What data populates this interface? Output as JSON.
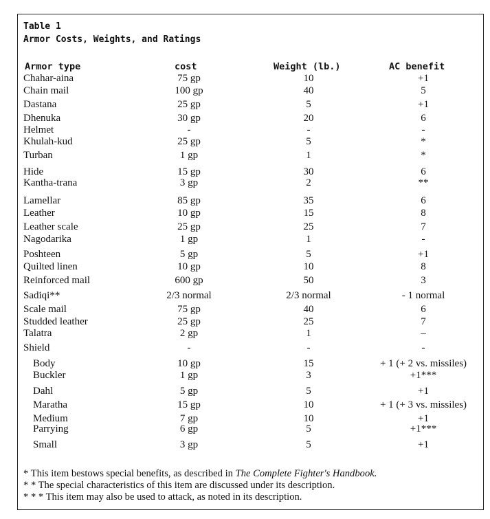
{
  "table": {
    "label": "Table 1",
    "title": "Armor Costs, Weights, and Ratings",
    "headers": [
      "Armor type",
      "cost",
      "Weight (lb.)",
      "AC benefit"
    ],
    "rows": [
      {
        "name": "Chahar-aina",
        "cost": "75 gp",
        "weight": "10",
        "ac": "+1"
      },
      {
        "name": "Chain mail",
        "cost": "100 gp",
        "weight": "40",
        "ac": "5"
      },
      {
        "name": "Dastana",
        "cost": "25 gp",
        "weight": "5",
        "ac": "+1"
      },
      {
        "name": "Dhenuka",
        "cost": "30 gp",
        "weight": "20",
        "ac": "6"
      },
      {
        "name": "Helmet",
        "cost": "-",
        "weight": "-",
        "ac": "-"
      },
      {
        "name": "Khulah-kud",
        "cost": "25 gp",
        "weight": "5",
        "ac": "*"
      },
      {
        "name": "Turban",
        "cost": "1 gp",
        "weight": "1",
        "ac": "*"
      },
      {
        "name": "Hide",
        "cost": "15 gp",
        "weight": "30",
        "ac": "6"
      },
      {
        "name": "Kantha-trana",
        "cost": "3 gp",
        "weight": "2",
        "ac": "**"
      },
      {
        "name": "Lamellar",
        "cost": "85 gp",
        "weight": "35",
        "ac": "6"
      },
      {
        "name": "Leather",
        "cost": "10 gp",
        "weight": "15",
        "ac": "8"
      },
      {
        "name": "Leather scale",
        "cost": "25 gp",
        "weight": "25",
        "ac": "7"
      },
      {
        "name": "Nagodarika",
        "cost": "1 gp",
        "weight": "1",
        "ac": "-"
      },
      {
        "name": "Poshteen",
        "cost": "5 gp",
        "weight": "5",
        "ac": "+1"
      },
      {
        "name": "Quilted linen",
        "cost": "10 gp",
        "weight": "10",
        "ac": "8"
      },
      {
        "name": "Reinforced mail",
        "cost": "600 gp",
        "weight": "50",
        "ac": "3"
      },
      {
        "name": "Sadiqi**",
        "cost": "2/3 normal",
        "weight": "2/3 normal",
        "ac": "- 1 normal"
      },
      {
        "name": "Scale mail",
        "cost": "75 gp",
        "weight": "40",
        "ac": "6"
      },
      {
        "name": "Studded leather",
        "cost": "25 gp",
        "weight": "25",
        "ac": "7"
      },
      {
        "name": "Talatra",
        "cost": "2 gp",
        "weight": "1",
        "ac": "–"
      },
      {
        "name": "Shield",
        "cost": "-",
        "weight": "-",
        "ac": "-"
      },
      {
        "name": "Body",
        "cost": "10 gp",
        "weight": "15",
        "ac": "+ 1 (+ 2 vs. missiles)",
        "indent": true
      },
      {
        "name": "Buckler",
        "cost": "1 gp",
        "weight": "3",
        "ac": "+1***",
        "indent": true
      },
      {
        "name": "Dahl",
        "cost": "5 gp",
        "weight": "5",
        "ac": "+1",
        "indent": true
      },
      {
        "name": "Maratha",
        "cost": "15 gp",
        "weight": "10",
        "ac": "+ 1 (+ 3 vs. missiles)",
        "indent": true
      },
      {
        "name": "Medium",
        "cost": "7 gp",
        "weight": "10",
        "ac": "+1",
        "indent": true
      },
      {
        "name": "Parrying",
        "cost": "6 gp",
        "weight": "5",
        "ac": "+1***",
        "indent": true
      },
      {
        "name": "Small",
        "cost": "3 gp",
        "weight": "5",
        "ac": "+1",
        "indent": true
      }
    ],
    "notes": {
      "n1_prefix": "* This item bestows special benefits, as described in ",
      "n1_book": "The Complete Fighter's Handbook.",
      "n2": "* * The special characteristics of this item are discussed under its description.",
      "n3": "* * * This item may also be used to attack, as noted in its description."
    }
  }
}
